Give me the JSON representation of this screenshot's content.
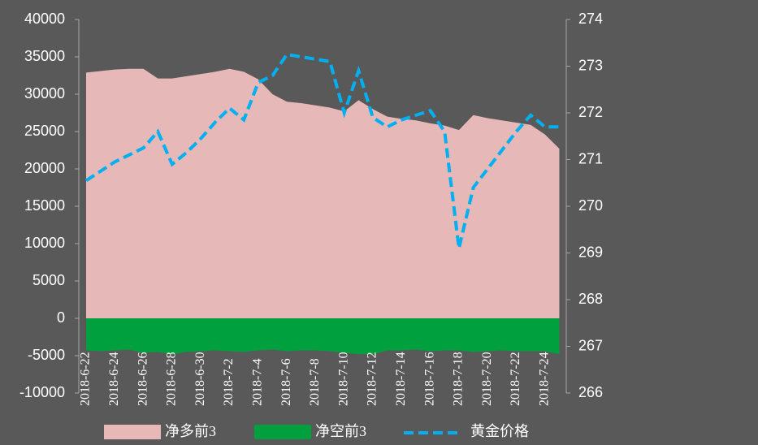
{
  "chart_data": {
    "type": "area",
    "categories": [
      "2018-6-22",
      null,
      "2018-6-24",
      null,
      "2018-6-26",
      null,
      "2018-6-28",
      null,
      "2018-6-30",
      null,
      "2018-7-2",
      null,
      "2018-7-4",
      null,
      "2018-7-6",
      null,
      "2018-7-8",
      null,
      "2018-7-10",
      null,
      "2018-7-12",
      null,
      "2018-7-14",
      null,
      "2018-7-16",
      null,
      "2018-7-18",
      null,
      "2018-7-20",
      null,
      "2018-7-22",
      null,
      "2018-7-24",
      null
    ],
    "series": [
      {
        "name": "净多前3",
        "color": "#e6b8b7",
        "kind": "area",
        "values": [
          32900,
          33100,
          33300,
          33400,
          33400,
          32100,
          32100,
          32400,
          32700,
          33000,
          33400,
          33000,
          32000,
          30000,
          29000,
          28800,
          28500,
          28200,
          27700,
          29200,
          28000,
          27000,
          26700,
          26500,
          26100,
          25800,
          25200,
          27200,
          26800,
          26500,
          26200,
          25900,
          24600,
          22700
        ]
      },
      {
        "name": "净空前3",
        "color": "#00a03e",
        "kind": "area",
        "values": [
          -4300,
          -4400,
          -4300,
          -4200,
          -4600,
          -4500,
          -4800,
          -4500,
          -4400,
          -4300,
          -4400,
          -4500,
          -4300,
          -4200,
          -4400,
          -4300,
          -4300,
          -4400,
          -4600,
          -4800,
          -4800,
          -4300,
          -4300,
          -4200,
          -4400,
          -4300,
          -4300,
          -4500,
          -4400,
          -4300,
          -4400,
          -4400,
          -4400,
          -4800
        ]
      },
      {
        "name": "黄金价格",
        "color": "#00b0f0",
        "kind": "dashed-line",
        "axis": "y2",
        "values": [
          270.55,
          270.75,
          270.95,
          271.1,
          271.25,
          271.6,
          270.9,
          271.15,
          271.45,
          271.8,
          272.1,
          271.85,
          272.65,
          272.8,
          273.25,
          273.2,
          273.15,
          273.1,
          272.0,
          272.9,
          271.9,
          271.7,
          271.85,
          271.95,
          272.05,
          271.6,
          269.1,
          270.4,
          270.8,
          271.2,
          271.6,
          271.95,
          271.7,
          271.7
        ]
      }
    ],
    "ylim": [
      -10000,
      40000
    ],
    "yticks": [
      -10000,
      -5000,
      0,
      5000,
      10000,
      15000,
      20000,
      25000,
      30000,
      35000,
      40000
    ],
    "y2lim": [
      266,
      274
    ],
    "y2ticks": [
      266,
      267,
      268,
      269,
      270,
      271,
      272,
      273,
      274
    ],
    "legend": "bottom"
  }
}
